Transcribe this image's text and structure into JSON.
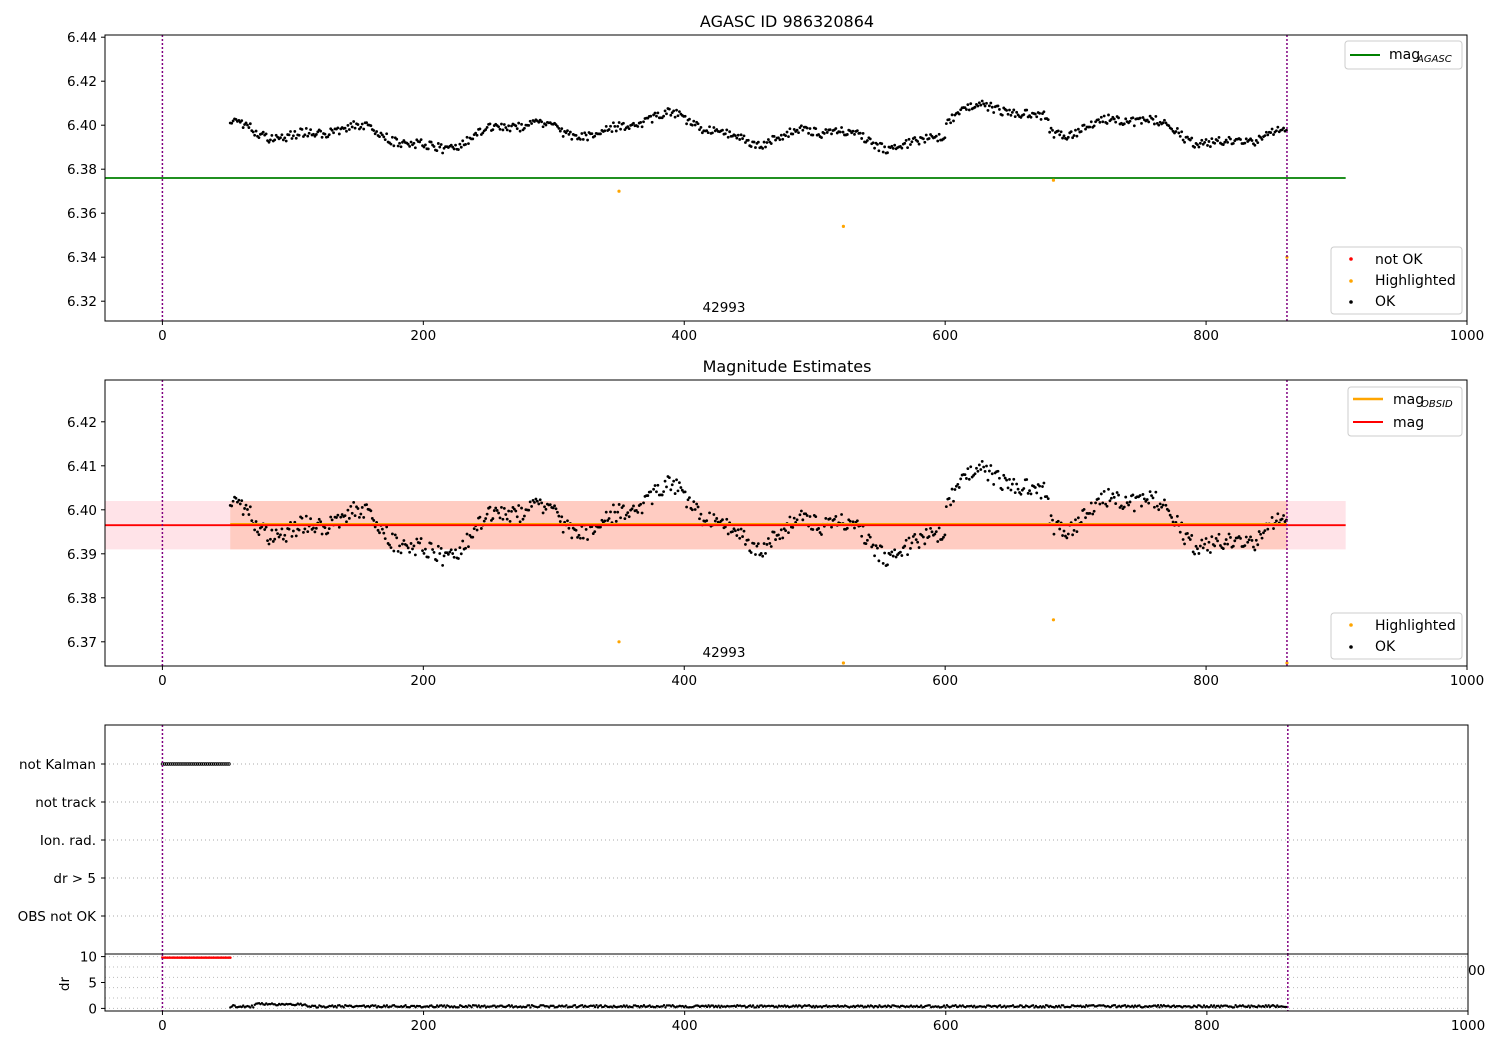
{
  "figure": {
    "panel1_title": "AGASC ID 986320864",
    "panel2_title": "Magnitude Estimates",
    "annotation": "42993",
    "truncated_tick": "00"
  },
  "chart_data": [
    {
      "type": "scatter",
      "title": "AGASC ID 986320864",
      "xlim": [
        -44,
        1000
      ],
      "ylim": [
        6.311,
        6.441
      ],
      "xticks": [
        0,
        200,
        400,
        600,
        800,
        1000
      ],
      "yticks": [
        6.32,
        6.34,
        6.36,
        6.38,
        6.4,
        6.42,
        6.44
      ],
      "vlines": [
        0,
        862
      ],
      "reference_line": {
        "name": "mag_AGASC",
        "label": "mag",
        "subscript": "AGASC",
        "y": 6.376,
        "x_range": [
          -44,
          907
        ],
        "color": "#008000"
      },
      "annotation": {
        "text": "42993",
        "x": 431
      },
      "ok_series": {
        "name": "OK",
        "color": "#000000",
        "x_start": 52,
        "x_end": 862,
        "y_min": 6.383,
        "y_max": 6.411,
        "mean": 6.397
      },
      "highlighted": {
        "name": "Highlighted",
        "color": "#ffa500",
        "points": [
          [
            350,
            6.37
          ],
          [
            522,
            6.354
          ],
          [
            683,
            6.375
          ],
          [
            862,
            6.34
          ]
        ]
      },
      "not_ok": {
        "name": "not OK",
        "color": "#ff0000",
        "points": []
      },
      "legends": [
        {
          "position": "upper right",
          "entries": [
            "mag_AGASC"
          ]
        },
        {
          "position": "lower right",
          "entries": [
            "not OK",
            "Highlighted",
            "OK"
          ]
        }
      ]
    },
    {
      "type": "scatter",
      "title": "Magnitude Estimates",
      "xlim": [
        -44,
        1000
      ],
      "ylim": [
        6.3645,
        6.4295
      ],
      "xticks": [
        0,
        200,
        400,
        600,
        800,
        1000
      ],
      "yticks": [
        6.37,
        6.38,
        6.39,
        6.4,
        6.41,
        6.42
      ],
      "vlines": [
        0,
        862
      ],
      "lines": [
        {
          "name": "mag_OBSID",
          "label": "mag",
          "subscript": "OBSID",
          "y": 6.3965,
          "color": "#ffa500"
        },
        {
          "name": "mag",
          "label": "mag",
          "y": 6.3965,
          "color": "#ff0000"
        }
      ],
      "bands": [
        {
          "y_range": [
            6.391,
            6.402
          ],
          "x_range": [
            -44,
            907
          ],
          "color": "#ffc0cb"
        },
        {
          "y_range": [
            6.391,
            6.402
          ],
          "x_range": [
            52,
            862
          ],
          "color": "#ffa07a"
        }
      ],
      "annotation": {
        "text": "42993",
        "x": 431
      },
      "ok_series": {
        "name": "OK",
        "color": "#000000"
      },
      "highlighted": {
        "name": "Highlighted",
        "color": "#ffa500",
        "points": [
          [
            350,
            6.37
          ],
          [
            683,
            6.375
          ],
          [
            522,
            6.365
          ],
          [
            862,
            6.365
          ]
        ]
      },
      "legends": [
        {
          "position": "upper right",
          "entries": [
            "mag_OBSID",
            "mag"
          ]
        },
        {
          "position": "lower right",
          "entries": [
            "Highlighted",
            "OK"
          ]
        }
      ]
    },
    {
      "type": "scatter",
      "title": "",
      "categories": [
        "not Kalman",
        "not track",
        "Ion. rad.",
        "dr > 5",
        "OBS not OK"
      ],
      "flag_points": {
        "category": "not Kalman",
        "x_range": [
          0,
          52
        ],
        "color": "#000000"
      },
      "vlines": [
        0,
        862
      ]
    },
    {
      "type": "scatter",
      "ylabel": "dr",
      "xlim": [
        -44,
        1000
      ],
      "ylim": [
        -0.5,
        10.5
      ],
      "yticks": [
        0,
        5,
        10
      ],
      "xticks": [
        0,
        200,
        400,
        600,
        800,
        1000
      ],
      "vlines": [
        0,
        862
      ],
      "clipped_series": {
        "x_range": [
          0,
          52
        ],
        "y": 9.8,
        "color": "#ff0000"
      },
      "ok_series": {
        "x_range": [
          52,
          862
        ],
        "y": 0.4,
        "color": "#000000"
      }
    }
  ]
}
